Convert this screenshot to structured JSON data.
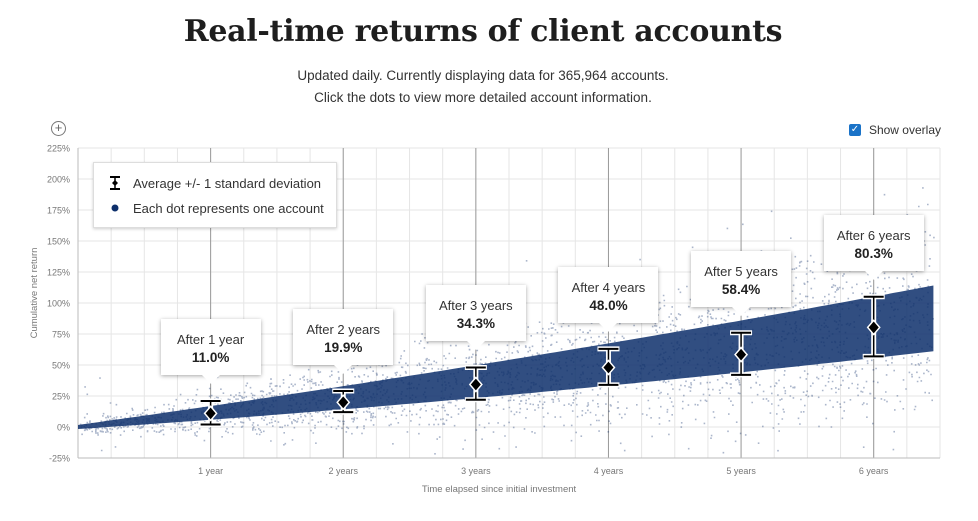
{
  "header": {
    "title": "Real-time returns of client accounts",
    "subtitle_line1": "Updated daily. Currently displaying data for 365,964 accounts.",
    "subtitle_line2": "Click the dots to view more detailed account information."
  },
  "controls": {
    "zoom_icon": "zoom-in-icon",
    "overlay_label": "Show overlay",
    "overlay_checked": true
  },
  "legend": {
    "errorbar_label": "Average +/- 1 standard deviation",
    "dot_label": "Each dot represents one account"
  },
  "colors": {
    "dots": "#0d2f6b",
    "grid": "#cfcfcf",
    "marker": "#000000",
    "checkbox": "#1a73c8"
  },
  "chart_data": {
    "type": "scatter",
    "title": "Real-time returns of client accounts",
    "xlabel": "Time elapsed since initial investment",
    "ylabel": "Cumulative net return",
    "x_unit": "years",
    "xlim": [
      0,
      6.5
    ],
    "ylim": [
      -25,
      225
    ],
    "y_ticks": [
      "-25%",
      "0%",
      "25%",
      "50%",
      "75%",
      "100%",
      "125%",
      "150%",
      "175%",
      "200%",
      "225%"
    ],
    "y_tick_values": [
      -25,
      0,
      25,
      50,
      75,
      100,
      125,
      150,
      175,
      200,
      225
    ],
    "x_ticks": [
      "1 year",
      "2 years",
      "3 years",
      "4 years",
      "5 years",
      "6 years"
    ],
    "x_tick_values": [
      1,
      2,
      3,
      4,
      5,
      6
    ],
    "accounts": "365,964",
    "summary": [
      {
        "x": 1,
        "label": "After 1 year",
        "value": "11.0%",
        "mean": 11.0,
        "lower": 2,
        "upper": 21
      },
      {
        "x": 2,
        "label": "After 2 years",
        "value": "19.9%",
        "mean": 19.9,
        "lower": 12,
        "upper": 29
      },
      {
        "x": 3,
        "label": "After 3 years",
        "value": "34.3%",
        "mean": 34.3,
        "lower": 22,
        "upper": 48
      },
      {
        "x": 4,
        "label": "After 4 years",
        "value": "48.0%",
        "mean": 48.0,
        "lower": 34,
        "upper": 63
      },
      {
        "x": 5,
        "label": "After 5 years",
        "value": "58.4%",
        "mean": 58.4,
        "lower": 42,
        "upper": 76
      },
      {
        "x": 6,
        "label": "After 6 years",
        "value": "80.3%",
        "mean": 80.3,
        "lower": 57,
        "upper": 105
      }
    ]
  }
}
